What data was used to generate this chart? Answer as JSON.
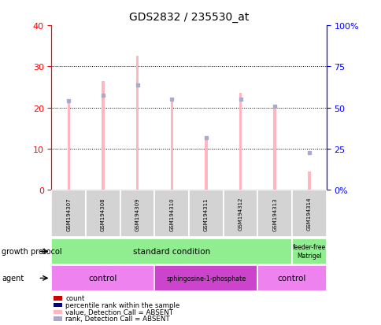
{
  "title": "GDS2832 / 235530_at",
  "samples": [
    "GSM194307",
    "GSM194308",
    "GSM194309",
    "GSM194310",
    "GSM194311",
    "GSM194312",
    "GSM194313",
    "GSM194314"
  ],
  "value_absent": [
    21.5,
    26.5,
    32.5,
    22.0,
    12.5,
    23.5,
    20.5,
    4.5
  ],
  "rank_absent_pct": [
    54.0,
    57.5,
    63.5,
    55.0,
    31.5,
    55.0,
    51.0,
    22.5
  ],
  "left_ylim": [
    0,
    40
  ],
  "right_ylim": [
    0,
    100
  ],
  "left_yticks": [
    0,
    10,
    20,
    30,
    40
  ],
  "right_yticks": [
    0,
    25,
    50,
    75,
    100
  ],
  "bar_color_absent": "#FFB6C1",
  "rank_absent_color": "#AAAACC",
  "sample_bg_color": "#D3D3D3",
  "left_tick_color": "red",
  "right_tick_color": "blue",
  "legend_items": [
    {
      "color": "#CC0000",
      "label": "count"
    },
    {
      "color": "#00008B",
      "label": "percentile rank within the sample"
    },
    {
      "color": "#FFB6C1",
      "label": "value, Detection Call = ABSENT"
    },
    {
      "color": "#AAAACC",
      "label": "rank, Detection Call = ABSENT"
    }
  ],
  "growth_protocol_text": "growth protocol",
  "agent_text": "agent",
  "standard_condition_color": "#90EE90",
  "feeder_free_color": "#90EE90",
  "control_color": "#EE82EE",
  "sphingo_color": "#CC44CC"
}
